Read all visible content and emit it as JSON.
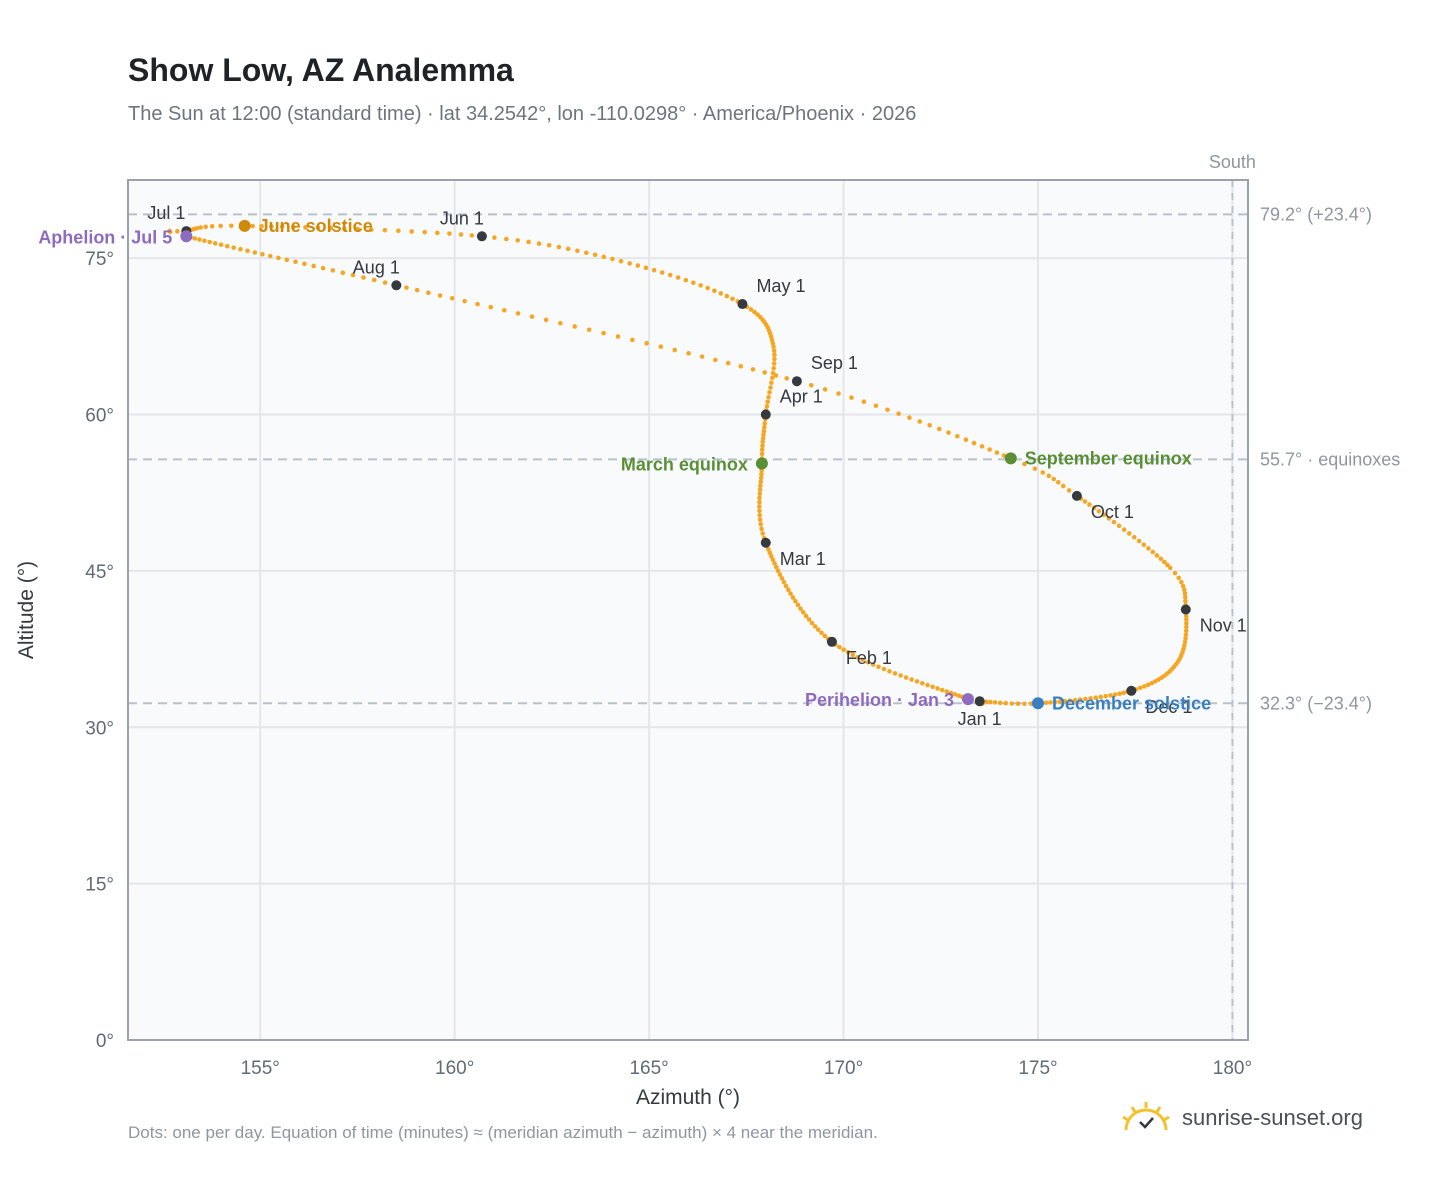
{
  "title": "Show Low, AZ Analemma",
  "subtitle": "The Sun at 12:00 (standard time) · lat 34.2542°, lon -110.0298° · America/Phoenix · 2026",
  "footnote": "Dots: one per day. Equation of time (minutes) ≈ (meridian azimuth − azimuth) × 4 near the meridian.",
  "brand": "sunrise-sunset.org",
  "colors": {
    "curve": "#f5a623",
    "month_marker": "#343a40",
    "solstice_june": "#d08a0a",
    "solstice_december": "#3a7fc1",
    "equinox": "#5a8f35",
    "apsis": "#8e6bbf",
    "reference_line": "#b8c2cc",
    "grid": "#e3e7eb",
    "plot_bg": "#f8fafc",
    "axis": "#9aa3ad",
    "brand_sun": "#f2c12e"
  },
  "chart_data": {
    "type": "scatter",
    "xlabel": "Azimuth (°)",
    "ylabel": "Altitude (°)",
    "xlim": [
      151.6,
      180.4
    ],
    "ylim": [
      0,
      82.5
    ],
    "xticks": [
      155,
      160,
      165,
      170,
      175,
      180
    ],
    "xtick_labels": [
      "155°",
      "160°",
      "165°",
      "170°",
      "175°",
      "180°"
    ],
    "yticks": [
      0,
      15,
      30,
      45,
      60,
      75
    ],
    "ytick_labels": [
      "0°",
      "15°",
      "30°",
      "45°",
      "60°",
      "75°"
    ],
    "grid": true,
    "meridian": {
      "azimuth": 180,
      "label": "South"
    },
    "reference_lines": [
      {
        "altitude": 79.2,
        "label": "79.2° (+23.4°)"
      },
      {
        "altitude": 55.7,
        "label": "55.7° · equinoxes"
      },
      {
        "altitude": 32.3,
        "label": "32.3° (−23.4°)"
      }
    ],
    "analemma_anchors": [
      {
        "doy": 1,
        "az": 173.5,
        "alt": 32.5
      },
      {
        "doy": 3,
        "az": 173.2,
        "alt": 32.7
      },
      {
        "doy": 32,
        "az": 169.7,
        "alt": 38.2
      },
      {
        "doy": 60,
        "az": 168.0,
        "alt": 47.7
      },
      {
        "doy": 79,
        "az": 167.9,
        "alt": 55.3
      },
      {
        "doy": 91,
        "az": 168.0,
        "alt": 60.0
      },
      {
        "doy": 106,
        "az": 168.2,
        "alt": 66.5
      },
      {
        "doy": 121,
        "az": 167.4,
        "alt": 70.6
      },
      {
        "doy": 137,
        "az": 164.5,
        "alt": 74.5
      },
      {
        "doy": 152,
        "az": 160.7,
        "alt": 77.1
      },
      {
        "doy": 172,
        "az": 154.6,
        "alt": 78.1
      },
      {
        "doy": 182,
        "az": 153.1,
        "alt": 77.6
      },
      {
        "doy": 186,
        "az": 153.1,
        "alt": 77.1
      },
      {
        "doy": 213,
        "az": 158.5,
        "alt": 72.4
      },
      {
        "doy": 244,
        "az": 168.8,
        "alt": 63.2
      },
      {
        "doy": 265,
        "az": 174.3,
        "alt": 55.8
      },
      {
        "doy": 274,
        "az": 176.0,
        "alt": 52.2
      },
      {
        "doy": 295,
        "az": 178.4,
        "alt": 45.3
      },
      {
        "doy": 305,
        "az": 178.8,
        "alt": 41.3
      },
      {
        "doy": 320,
        "az": 178.6,
        "alt": 36.3
      },
      {
        "doy": 335,
        "az": 177.4,
        "alt": 33.5
      },
      {
        "doy": 355,
        "az": 175.0,
        "alt": 32.3
      },
      {
        "doy": 366,
        "az": 173.5,
        "alt": 32.5
      }
    ],
    "month_markers": [
      {
        "label": "Jan 1",
        "az": 173.5,
        "alt": 32.5,
        "pos": "below"
      },
      {
        "label": "Feb 1",
        "az": 169.7,
        "alt": 38.2,
        "pos": "below-right"
      },
      {
        "label": "Mar 1",
        "az": 168.0,
        "alt": 47.7,
        "pos": "below-right"
      },
      {
        "label": "Apr 1",
        "az": 168.0,
        "alt": 60.0,
        "pos": "above-right"
      },
      {
        "label": "May 1",
        "az": 167.4,
        "alt": 70.6,
        "pos": "above-right"
      },
      {
        "label": "Jun 1",
        "az": 160.7,
        "alt": 77.1,
        "pos": "above-left"
      },
      {
        "label": "Jul 1",
        "az": 153.1,
        "alt": 77.6,
        "pos": "above-left"
      },
      {
        "label": "Aug 1",
        "az": 158.5,
        "alt": 72.4,
        "pos": "above-left"
      },
      {
        "label": "Sep 1",
        "az": 168.8,
        "alt": 63.2,
        "pos": "above-right"
      },
      {
        "label": "Oct 1",
        "az": 176.0,
        "alt": 52.2,
        "pos": "below-right"
      },
      {
        "label": "Nov 1",
        "az": 178.8,
        "alt": 41.3,
        "pos": "below-right"
      },
      {
        "label": "Dec 1",
        "az": 177.4,
        "alt": 33.5,
        "pos": "below-right"
      }
    ],
    "events": [
      {
        "label": "June solstice",
        "az": 154.6,
        "alt": 78.1,
        "color_key": "solstice_june",
        "pos": "right"
      },
      {
        "label": "December solstice",
        "az": 175.0,
        "alt": 32.3,
        "color_key": "solstice_december",
        "pos": "right"
      },
      {
        "label": "March equinox",
        "az": 167.9,
        "alt": 55.3,
        "color_key": "equinox",
        "pos": "left"
      },
      {
        "label": "September equinox",
        "az": 174.3,
        "alt": 55.8,
        "color_key": "equinox",
        "pos": "right"
      },
      {
        "label": "Aphelion · Jul 5",
        "az": 153.1,
        "alt": 77.1,
        "color_key": "apsis",
        "pos": "left"
      },
      {
        "label": "Perihelion · Jan 3",
        "az": 173.2,
        "alt": 32.7,
        "color_key": "apsis",
        "pos": "left"
      }
    ]
  }
}
